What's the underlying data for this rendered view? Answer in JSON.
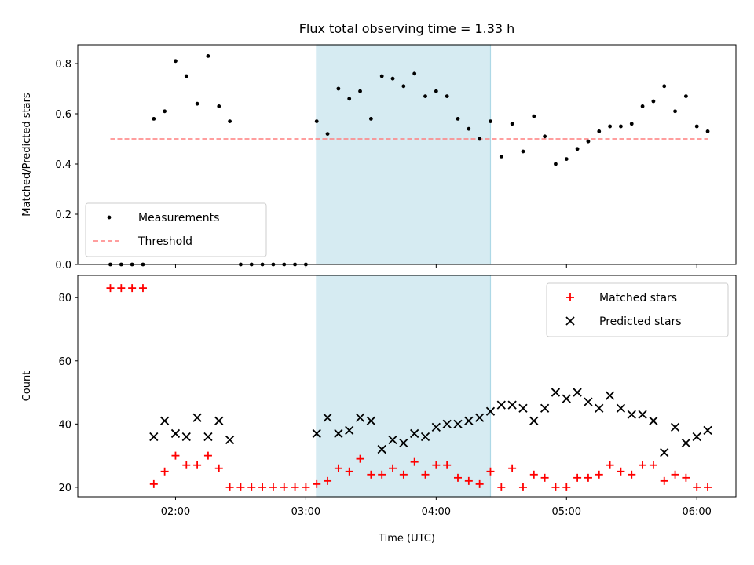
{
  "title": "Flux total observing time = 1.33 h",
  "colors": {
    "shade": "#add8e6",
    "threshold": "#ff7f7f",
    "measurements": "#000000",
    "matched": "#ff0000",
    "predicted": "#000000"
  },
  "chart_data": [
    {
      "type": "scatter",
      "ylabel": "Matched/Predicted stars",
      "ylim": [
        0,
        0.875
      ],
      "yticks": [
        0.0,
        0.2,
        0.4,
        0.6,
        0.8
      ],
      "ytick_labels": [
        "0.0",
        "0.2",
        "0.4",
        "0.6",
        "0.8"
      ],
      "xlim": [
        "01:15",
        "06:18"
      ],
      "xticks": [
        "02:00",
        "03:00",
        "04:00",
        "05:00",
        "06:00"
      ],
      "shaded_span": [
        "03:05",
        "04:25"
      ],
      "legend_position": "lower-left",
      "threshold": {
        "name": "Threshold",
        "value": 0.5,
        "x": [
          "01:30",
          "06:05"
        ]
      },
      "series": [
        {
          "name": "Measurements",
          "marker": "dot",
          "points": [
            [
              "01:30",
              0.0
            ],
            [
              "01:35",
              0.0
            ],
            [
              "01:40",
              0.0
            ],
            [
              "01:45",
              0.0
            ],
            [
              "01:50",
              0.58
            ],
            [
              "01:55",
              0.61
            ],
            [
              "02:00",
              0.81
            ],
            [
              "02:05",
              0.75
            ],
            [
              "02:10",
              0.64
            ],
            [
              "02:15",
              0.83
            ],
            [
              "02:20",
              0.63
            ],
            [
              "02:25",
              0.57
            ],
            [
              "02:30",
              0.0
            ],
            [
              "02:35",
              0.0
            ],
            [
              "02:40",
              0.0
            ],
            [
              "02:45",
              0.0
            ],
            [
              "02:50",
              0.0
            ],
            [
              "02:55",
              0.0
            ],
            [
              "03:00",
              0.0
            ],
            [
              "03:05",
              0.57
            ],
            [
              "03:10",
              0.52
            ],
            [
              "03:15",
              0.7
            ],
            [
              "03:20",
              0.66
            ],
            [
              "03:25",
              0.69
            ],
            [
              "03:30",
              0.58
            ],
            [
              "03:35",
              0.75
            ],
            [
              "03:40",
              0.74
            ],
            [
              "03:45",
              0.71
            ],
            [
              "03:50",
              0.76
            ],
            [
              "03:55",
              0.67
            ],
            [
              "04:00",
              0.69
            ],
            [
              "04:05",
              0.67
            ],
            [
              "04:10",
              0.58
            ],
            [
              "04:15",
              0.54
            ],
            [
              "04:20",
              0.5
            ],
            [
              "04:25",
              0.57
            ],
            [
              "04:30",
              0.43
            ],
            [
              "04:35",
              0.56
            ],
            [
              "04:40",
              0.45
            ],
            [
              "04:45",
              0.59
            ],
            [
              "04:50",
              0.51
            ],
            [
              "04:55",
              0.4
            ],
            [
              "05:00",
              0.42
            ],
            [
              "05:05",
              0.46
            ],
            [
              "05:10",
              0.49
            ],
            [
              "05:15",
              0.53
            ],
            [
              "05:20",
              0.55
            ],
            [
              "05:25",
              0.55
            ],
            [
              "05:30",
              0.56
            ],
            [
              "05:35",
              0.63
            ],
            [
              "05:40",
              0.65
            ],
            [
              "05:45",
              0.71
            ],
            [
              "05:50",
              0.61
            ],
            [
              "05:55",
              0.67
            ],
            [
              "06:00",
              0.55
            ],
            [
              "06:05",
              0.53
            ]
          ]
        }
      ]
    },
    {
      "type": "scatter",
      "ylabel": "Count",
      "xlabel": "Time (UTC)",
      "ylim": [
        17,
        87
      ],
      "yticks": [
        20,
        40,
        60,
        80
      ],
      "ytick_labels": [
        "20",
        "40",
        "60",
        "80"
      ],
      "xlim": [
        "01:15",
        "06:18"
      ],
      "xticks": [
        "02:00",
        "03:00",
        "04:00",
        "05:00",
        "06:00"
      ],
      "xtick_labels": [
        "02:00",
        "03:00",
        "04:00",
        "05:00",
        "06:00"
      ],
      "shaded_span": [
        "03:05",
        "04:25"
      ],
      "legend_position": "upper-right",
      "series": [
        {
          "name": "Matched stars",
          "marker": "plus",
          "points": [
            [
              "01:30",
              83
            ],
            [
              "01:35",
              83
            ],
            [
              "01:40",
              83
            ],
            [
              "01:45",
              83
            ],
            [
              "01:50",
              21
            ],
            [
              "01:55",
              25
            ],
            [
              "02:00",
              30
            ],
            [
              "02:05",
              27
            ],
            [
              "02:10",
              27
            ],
            [
              "02:15",
              30
            ],
            [
              "02:20",
              26
            ],
            [
              "02:25",
              20
            ],
            [
              "02:30",
              20
            ],
            [
              "02:35",
              20
            ],
            [
              "02:40",
              20
            ],
            [
              "02:45",
              20
            ],
            [
              "02:50",
              20
            ],
            [
              "02:55",
              20
            ],
            [
              "03:00",
              20
            ],
            [
              "03:05",
              21
            ],
            [
              "03:10",
              22
            ],
            [
              "03:15",
              26
            ],
            [
              "03:20",
              25
            ],
            [
              "03:25",
              29
            ],
            [
              "03:30",
              24
            ],
            [
              "03:35",
              24
            ],
            [
              "03:40",
              26
            ],
            [
              "03:45",
              24
            ],
            [
              "03:50",
              28
            ],
            [
              "03:55",
              24
            ],
            [
              "04:00",
              27
            ],
            [
              "04:05",
              27
            ],
            [
              "04:10",
              23
            ],
            [
              "04:15",
              22
            ],
            [
              "04:20",
              21
            ],
            [
              "04:25",
              25
            ],
            [
              "04:30",
              20
            ],
            [
              "04:35",
              26
            ],
            [
              "04:40",
              20
            ],
            [
              "04:45",
              24
            ],
            [
              "04:50",
              23
            ],
            [
              "04:55",
              20
            ],
            [
              "05:00",
              20
            ],
            [
              "05:05",
              23
            ],
            [
              "05:10",
              23
            ],
            [
              "05:15",
              24
            ],
            [
              "05:20",
              27
            ],
            [
              "05:25",
              25
            ],
            [
              "05:30",
              24
            ],
            [
              "05:35",
              27
            ],
            [
              "05:40",
              27
            ],
            [
              "05:45",
              22
            ],
            [
              "05:50",
              24
            ],
            [
              "05:55",
              23
            ],
            [
              "06:00",
              20
            ],
            [
              "06:05",
              20
            ]
          ]
        },
        {
          "name": "Predicted stars",
          "marker": "x",
          "points": [
            [
              "01:50",
              36
            ],
            [
              "01:55",
              41
            ],
            [
              "02:00",
              37
            ],
            [
              "02:05",
              36
            ],
            [
              "02:10",
              42
            ],
            [
              "02:15",
              36
            ],
            [
              "02:20",
              41
            ],
            [
              "02:25",
              35
            ],
            [
              "03:05",
              37
            ],
            [
              "03:10",
              42
            ],
            [
              "03:15",
              37
            ],
            [
              "03:20",
              38
            ],
            [
              "03:25",
              42
            ],
            [
              "03:30",
              41
            ],
            [
              "03:35",
              32
            ],
            [
              "03:40",
              35
            ],
            [
              "03:45",
              34
            ],
            [
              "03:50",
              37
            ],
            [
              "03:55",
              36
            ],
            [
              "04:00",
              39
            ],
            [
              "04:05",
              40
            ],
            [
              "04:10",
              40
            ],
            [
              "04:15",
              41
            ],
            [
              "04:20",
              42
            ],
            [
              "04:25",
              44
            ],
            [
              "04:30",
              46
            ],
            [
              "04:35",
              46
            ],
            [
              "04:40",
              45
            ],
            [
              "04:45",
              41
            ],
            [
              "04:50",
              45
            ],
            [
              "04:55",
              50
            ],
            [
              "05:00",
              48
            ],
            [
              "05:05",
              50
            ],
            [
              "05:10",
              47
            ],
            [
              "05:15",
              45
            ],
            [
              "05:20",
              49
            ],
            [
              "05:25",
              45
            ],
            [
              "05:30",
              43
            ],
            [
              "05:35",
              43
            ],
            [
              "05:40",
              41
            ],
            [
              "05:45",
              31
            ],
            [
              "05:50",
              39
            ],
            [
              "05:55",
              34
            ],
            [
              "06:00",
              36
            ],
            [
              "06:05",
              38
            ]
          ]
        }
      ]
    }
  ]
}
